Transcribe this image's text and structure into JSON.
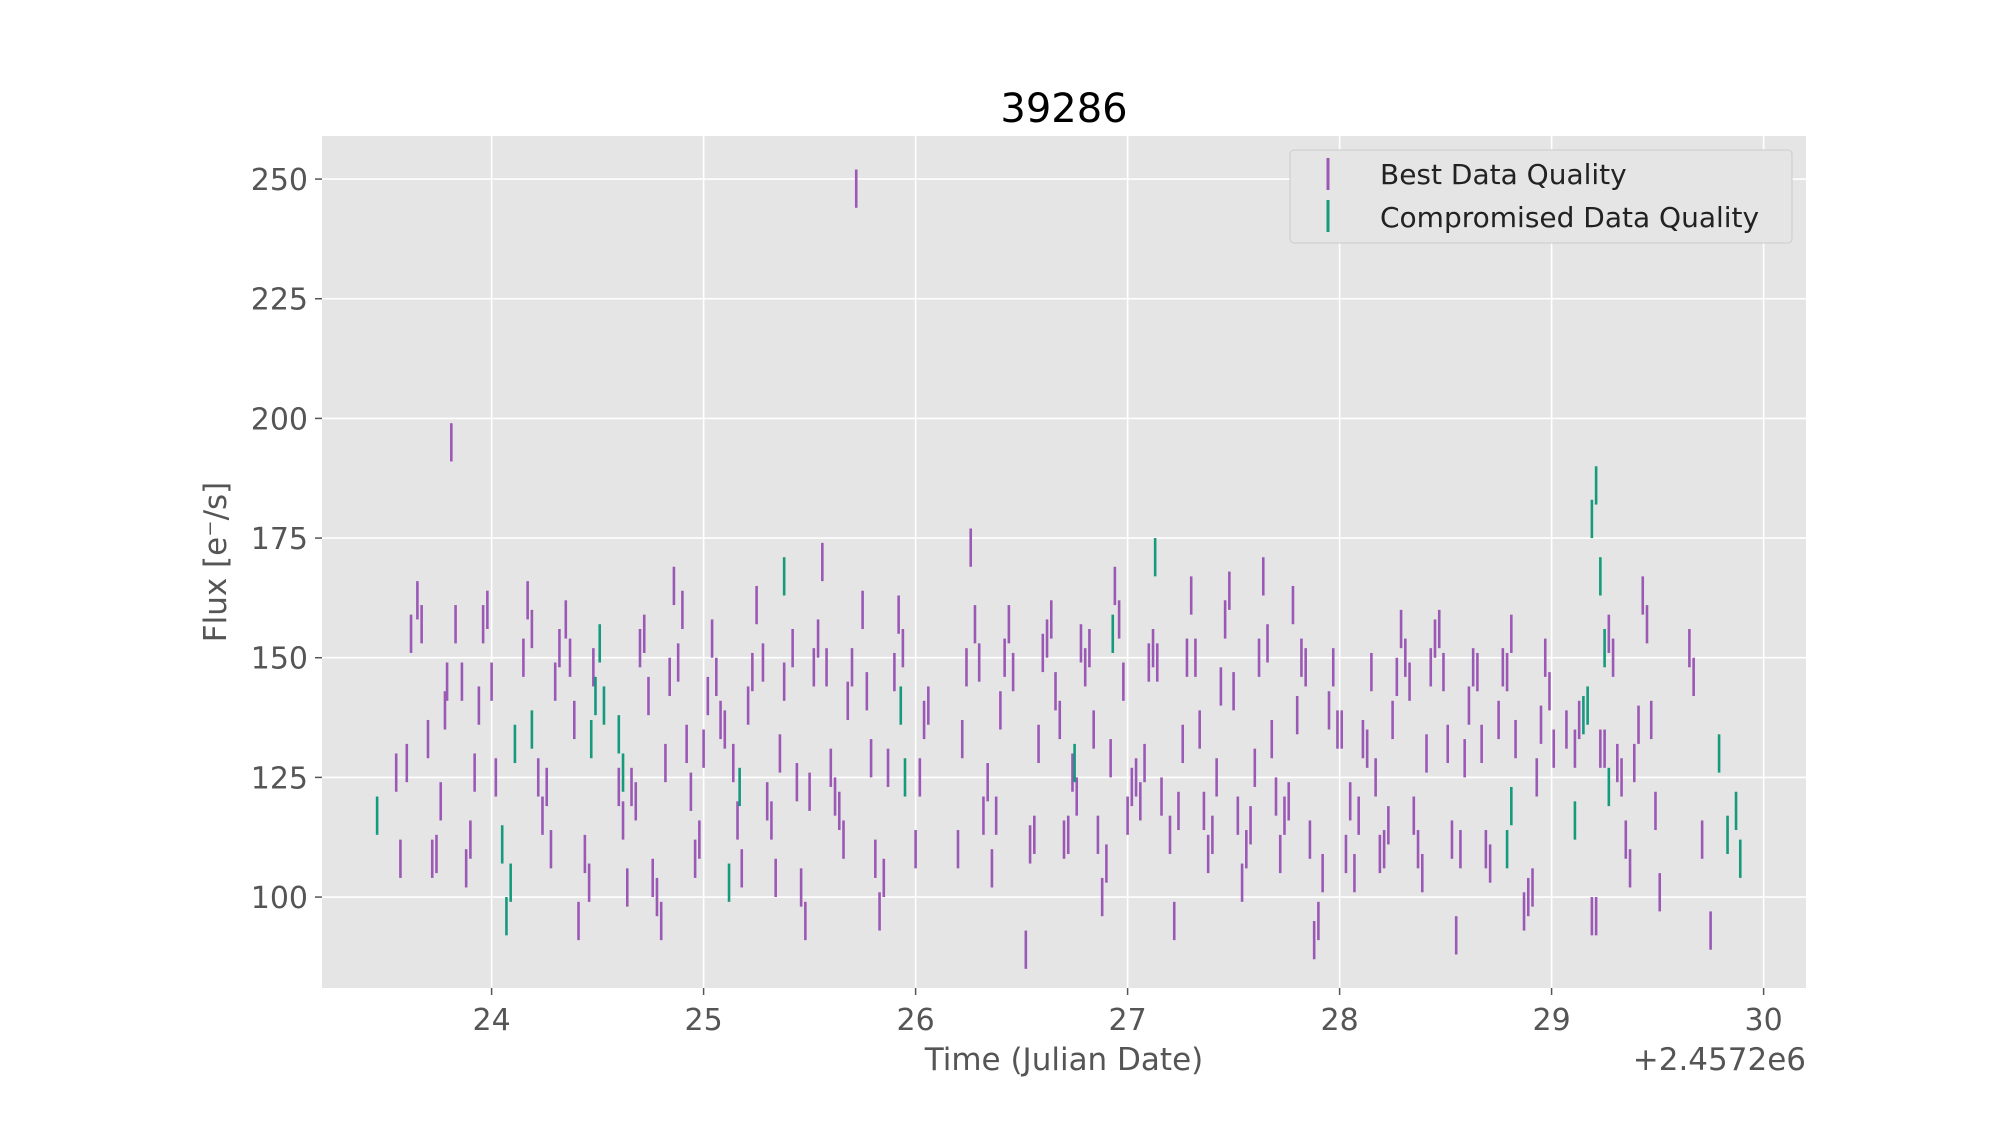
{
  "chart_data": {
    "type": "scatter",
    "title": "39286",
    "xlabel": "Time (Julian Date)",
    "ylabel": "Flux [e⁻/s]",
    "x_offset_text": "+2.4572e6",
    "xlim": [
      23.2,
      30.2
    ],
    "ylim": [
      81,
      259
    ],
    "xticks": [
      24,
      25,
      26,
      27,
      28,
      29,
      30
    ],
    "xtick_labels": [
      "24",
      "25",
      "26",
      "27",
      "28",
      "29",
      "30"
    ],
    "yticks": [
      100,
      125,
      150,
      175,
      200,
      225,
      250
    ],
    "ytick_labels": [
      "100",
      "125",
      "150",
      "175",
      "200",
      "225",
      "250"
    ],
    "grid": true,
    "legend_position": "top-right",
    "legend": [
      "Best Data Quality",
      "Compromised Data Quality"
    ],
    "colors": {
      "best": "#9b59b6",
      "compromised": "#159a7d",
      "plot_bg": "#e5e5e5",
      "grid": "#ffffff"
    },
    "series": [
      {
        "name": "Best Data Quality",
        "points": [
          [
            23.55,
            126
          ],
          [
            23.57,
            108
          ],
          [
            23.6,
            128
          ],
          [
            23.62,
            155
          ],
          [
            23.65,
            162
          ],
          [
            23.67,
            157
          ],
          [
            23.7,
            133
          ],
          [
            23.72,
            108
          ],
          [
            23.74,
            109
          ],
          [
            23.76,
            120
          ],
          [
            23.78,
            139
          ],
          [
            23.79,
            145
          ],
          [
            23.81,
            195
          ],
          [
            23.83,
            157
          ],
          [
            23.86,
            145
          ],
          [
            23.88,
            106
          ],
          [
            23.9,
            112
          ],
          [
            23.92,
            126
          ],
          [
            23.94,
            140
          ],
          [
            23.96,
            157
          ],
          [
            23.98,
            160
          ],
          [
            24.0,
            145
          ],
          [
            24.02,
            125
          ],
          [
            24.15,
            150
          ],
          [
            24.17,
            162
          ],
          [
            24.19,
            156
          ],
          [
            24.22,
            125
          ],
          [
            24.24,
            117
          ],
          [
            24.26,
            123
          ],
          [
            24.28,
            110
          ],
          [
            24.3,
            145
          ],
          [
            24.32,
            152
          ],
          [
            24.35,
            158
          ],
          [
            24.37,
            150
          ],
          [
            24.39,
            137
          ],
          [
            24.41,
            95
          ],
          [
            24.44,
            109
          ],
          [
            24.46,
            103
          ],
          [
            24.48,
            148
          ],
          [
            24.6,
            123
          ],
          [
            24.62,
            116
          ],
          [
            24.64,
            102
          ],
          [
            24.66,
            123
          ],
          [
            24.68,
            120
          ],
          [
            24.7,
            152
          ],
          [
            24.72,
            155
          ],
          [
            24.74,
            142
          ],
          [
            24.76,
            104
          ],
          [
            24.78,
            100
          ],
          [
            24.8,
            95
          ],
          [
            24.82,
            128
          ],
          [
            24.84,
            146
          ],
          [
            24.86,
            165
          ],
          [
            24.88,
            149
          ],
          [
            24.9,
            160
          ],
          [
            24.92,
            132
          ],
          [
            24.94,
            122
          ],
          [
            24.96,
            108
          ],
          [
            24.98,
            112
          ],
          [
            25.0,
            131
          ],
          [
            25.02,
            142
          ],
          [
            25.04,
            154
          ],
          [
            25.06,
            146
          ],
          [
            25.08,
            137
          ],
          [
            25.1,
            135
          ],
          [
            25.14,
            128
          ],
          [
            25.16,
            116
          ],
          [
            25.18,
            106
          ],
          [
            25.21,
            140
          ],
          [
            25.23,
            147
          ],
          [
            25.25,
            161
          ],
          [
            25.28,
            149
          ],
          [
            25.3,
            120
          ],
          [
            25.32,
            116
          ],
          [
            25.34,
            104
          ],
          [
            25.36,
            130
          ],
          [
            25.38,
            145
          ],
          [
            25.42,
            152
          ],
          [
            25.44,
            124
          ],
          [
            25.46,
            102
          ],
          [
            25.48,
            95
          ],
          [
            25.5,
            122
          ],
          [
            25.52,
            148
          ],
          [
            25.54,
            154
          ],
          [
            25.56,
            170
          ],
          [
            25.58,
            148
          ],
          [
            25.6,
            127
          ],
          [
            25.62,
            121
          ],
          [
            25.64,
            118
          ],
          [
            25.66,
            112
          ],
          [
            25.68,
            141
          ],
          [
            25.7,
            148
          ],
          [
            25.72,
            248
          ],
          [
            25.75,
            160
          ],
          [
            25.77,
            143
          ],
          [
            25.79,
            129
          ],
          [
            25.81,
            108
          ],
          [
            25.83,
            97
          ],
          [
            25.85,
            104
          ],
          [
            25.87,
            127
          ],
          [
            25.9,
            147
          ],
          [
            25.92,
            159
          ],
          [
            25.94,
            152
          ],
          [
            26.0,
            110
          ],
          [
            26.02,
            125
          ],
          [
            26.04,
            137
          ],
          [
            26.06,
            140
          ],
          [
            26.2,
            110
          ],
          [
            26.22,
            133
          ],
          [
            26.24,
            148
          ],
          [
            26.26,
            173
          ],
          [
            26.28,
            157
          ],
          [
            26.3,
            149
          ],
          [
            26.32,
            117
          ],
          [
            26.34,
            124
          ],
          [
            26.36,
            106
          ],
          [
            26.38,
            117
          ],
          [
            26.4,
            139
          ],
          [
            26.42,
            150
          ],
          [
            26.44,
            157
          ],
          [
            26.46,
            147
          ],
          [
            26.52,
            89
          ],
          [
            26.54,
            111
          ],
          [
            26.56,
            113
          ],
          [
            26.58,
            132
          ],
          [
            26.6,
            151
          ],
          [
            26.62,
            154
          ],
          [
            26.64,
            158
          ],
          [
            26.66,
            143
          ],
          [
            26.68,
            137
          ],
          [
            26.7,
            112
          ],
          [
            26.72,
            113
          ],
          [
            26.74,
            126
          ],
          [
            26.76,
            121
          ],
          [
            26.78,
            153
          ],
          [
            26.8,
            148
          ],
          [
            26.82,
            152
          ],
          [
            26.84,
            135
          ],
          [
            26.86,
            113
          ],
          [
            26.88,
            100
          ],
          [
            26.9,
            107
          ],
          [
            26.92,
            129
          ],
          [
            26.94,
            165
          ],
          [
            26.96,
            158
          ],
          [
            26.98,
            145
          ],
          [
            27.0,
            117
          ],
          [
            27.02,
            123
          ],
          [
            27.04,
            125
          ],
          [
            27.06,
            120
          ],
          [
            27.08,
            128
          ],
          [
            27.1,
            149
          ],
          [
            27.12,
            152
          ],
          [
            27.14,
            149
          ],
          [
            27.16,
            121
          ],
          [
            27.2,
            113
          ],
          [
            27.22,
            95
          ],
          [
            27.24,
            118
          ],
          [
            27.26,
            132
          ],
          [
            27.28,
            150
          ],
          [
            27.3,
            163
          ],
          [
            27.32,
            150
          ],
          [
            27.34,
            135
          ],
          [
            27.36,
            118
          ],
          [
            27.38,
            109
          ],
          [
            27.4,
            113
          ],
          [
            27.42,
            125
          ],
          [
            27.44,
            144
          ],
          [
            27.46,
            158
          ],
          [
            27.48,
            164
          ],
          [
            27.5,
            143
          ],
          [
            27.52,
            117
          ],
          [
            27.54,
            103
          ],
          [
            27.56,
            110
          ],
          [
            27.58,
            115
          ],
          [
            27.6,
            127
          ],
          [
            27.62,
            150
          ],
          [
            27.64,
            167
          ],
          [
            27.66,
            153
          ],
          [
            27.68,
            133
          ],
          [
            27.7,
            121
          ],
          [
            27.72,
            109
          ],
          [
            27.74,
            117
          ],
          [
            27.76,
            120
          ],
          [
            27.78,
            161
          ],
          [
            27.8,
            138
          ],
          [
            27.82,
            150
          ],
          [
            27.84,
            148
          ],
          [
            27.86,
            112
          ],
          [
            27.88,
            91
          ],
          [
            27.9,
            95
          ],
          [
            27.92,
            105
          ],
          [
            27.95,
            139
          ],
          [
            27.97,
            148
          ],
          [
            27.99,
            135
          ],
          [
            28.01,
            135
          ],
          [
            28.03,
            109
          ],
          [
            28.05,
            120
          ],
          [
            28.07,
            105
          ],
          [
            28.09,
            117
          ],
          [
            28.11,
            133
          ],
          [
            28.13,
            131
          ],
          [
            28.15,
            147
          ],
          [
            28.17,
            125
          ],
          [
            28.19,
            109
          ],
          [
            28.21,
            110
          ],
          [
            28.23,
            115
          ],
          [
            28.25,
            137
          ],
          [
            28.27,
            146
          ],
          [
            28.29,
            156
          ],
          [
            28.31,
            150
          ],
          [
            28.33,
            145
          ],
          [
            28.35,
            117
          ],
          [
            28.37,
            110
          ],
          [
            28.39,
            105
          ],
          [
            28.41,
            130
          ],
          [
            28.43,
            148
          ],
          [
            28.45,
            154
          ],
          [
            28.47,
            156
          ],
          [
            28.49,
            147
          ],
          [
            28.51,
            132
          ],
          [
            28.53,
            112
          ],
          [
            28.55,
            92
          ],
          [
            28.57,
            110
          ],
          [
            28.59,
            129
          ],
          [
            28.61,
            140
          ],
          [
            28.63,
            148
          ],
          [
            28.65,
            147
          ],
          [
            28.67,
            132
          ],
          [
            28.69,
            110
          ],
          [
            28.71,
            107
          ],
          [
            28.75,
            137
          ],
          [
            28.77,
            148
          ],
          [
            28.79,
            147
          ],
          [
            28.81,
            155
          ],
          [
            28.83,
            133
          ],
          [
            28.87,
            97
          ],
          [
            28.89,
            100
          ],
          [
            28.91,
            102
          ],
          [
            28.93,
            125
          ],
          [
            28.95,
            136
          ],
          [
            28.97,
            150
          ],
          [
            28.99,
            143
          ],
          [
            29.01,
            131
          ],
          [
            29.07,
            135
          ],
          [
            29.11,
            131
          ],
          [
            29.13,
            137
          ],
          [
            29.19,
            96
          ],
          [
            29.21,
            96
          ],
          [
            29.23,
            131
          ],
          [
            29.25,
            131
          ],
          [
            29.27,
            155
          ],
          [
            29.29,
            150
          ],
          [
            29.31,
            128
          ],
          [
            29.33,
            125
          ],
          [
            29.35,
            112
          ],
          [
            29.37,
            106
          ],
          [
            29.39,
            128
          ],
          [
            29.41,
            136
          ],
          [
            29.43,
            163
          ],
          [
            29.45,
            157
          ],
          [
            29.47,
            137
          ],
          [
            29.49,
            118
          ],
          [
            29.51,
            101
          ],
          [
            29.65,
            152
          ],
          [
            29.67,
            146
          ],
          [
            29.71,
            112
          ],
          [
            29.75,
            93
          ]
        ]
      },
      {
        "name": "Compromised Data Quality",
        "points": [
          [
            23.46,
            117
          ],
          [
            24.05,
            111
          ],
          [
            24.07,
            96
          ],
          [
            24.09,
            103
          ],
          [
            24.11,
            132
          ],
          [
            24.19,
            135
          ],
          [
            24.47,
            133
          ],
          [
            24.49,
            142
          ],
          [
            24.51,
            153
          ],
          [
            24.53,
            140
          ],
          [
            24.6,
            134
          ],
          [
            24.62,
            126
          ],
          [
            25.12,
            103
          ],
          [
            25.17,
            123
          ],
          [
            25.38,
            167
          ],
          [
            25.93,
            140
          ],
          [
            25.95,
            125
          ],
          [
            26.75,
            128
          ],
          [
            26.93,
            155
          ],
          [
            27.13,
            171
          ],
          [
            28.79,
            110
          ],
          [
            28.81,
            119
          ],
          [
            29.11,
            116
          ],
          [
            29.15,
            138
          ],
          [
            29.17,
            140
          ],
          [
            29.19,
            179
          ],
          [
            29.21,
            186
          ],
          [
            29.23,
            167
          ],
          [
            29.25,
            152
          ],
          [
            29.27,
            123
          ],
          [
            29.79,
            130
          ],
          [
            29.83,
            113
          ],
          [
            29.87,
            118
          ],
          [
            29.89,
            108
          ]
        ]
      }
    ]
  }
}
